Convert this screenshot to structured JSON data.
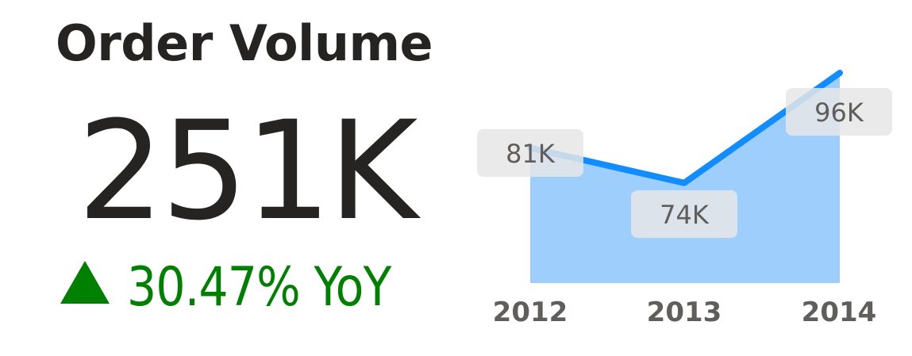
{
  "title": "Order Volume",
  "kpi": {
    "value": "251K",
    "change_arrow": "up-triangle-icon",
    "change_text": "30.47% YoY",
    "change_color": "#008000"
  },
  "chart_data": {
    "type": "area",
    "categories": [
      "2012",
      "2013",
      "2014"
    ],
    "series": [
      {
        "values": [
          81,
          74,
          96
        ],
        "data_labels": [
          "81K",
          "74K",
          "96K"
        ]
      }
    ],
    "ylim": [
      60,
      96
    ],
    "grid": false,
    "line_color": "#118DFF",
    "area_color": "#9ECFFC",
    "label_bg_color": "#E6E6E6",
    "label_text_color": "#605E5C",
    "axis_text_color": "#605E5C"
  }
}
